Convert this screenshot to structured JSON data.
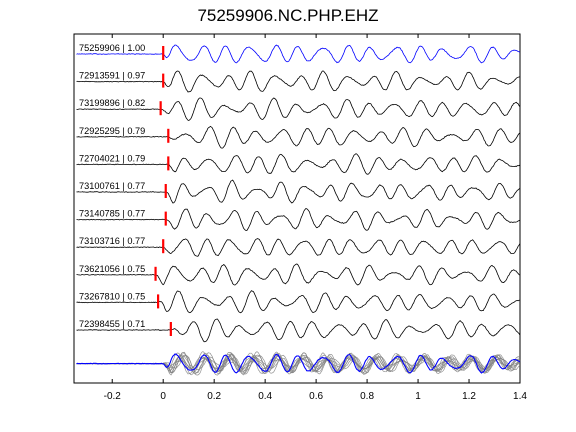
{
  "figure": {
    "title": "75259906.NC.PHP.EHZ"
  },
  "chart_data": {
    "type": "line",
    "title": "75259906.NC.PHP.EHZ",
    "xlim": [
      -0.35,
      1.4
    ],
    "x_ticks": [
      -0.2,
      0,
      0.2,
      0.4,
      0.6,
      0.8,
      1,
      1.2,
      1.4
    ],
    "x_tick_labels": [
      "-0.2",
      "0",
      "0.2",
      "0.4",
      "0.6",
      "0.8",
      "1",
      "1.2",
      "1.4"
    ],
    "xlabel": "",
    "ylabel": "",
    "grid": false,
    "pick_marker_color": "#ff0000",
    "template_color": "#0000ff",
    "trace_color": "#000000",
    "stack_color": "#808080",
    "traces": [
      {
        "label": "75259906 | 1.00",
        "event_id": "75259906",
        "correlation": 1.0,
        "pick_time": 0.0,
        "color": "#0000ff"
      },
      {
        "label": "72913591 | 0.97",
        "event_id": "72913591",
        "correlation": 0.97,
        "pick_time": 0.0,
        "color": "#000000"
      },
      {
        "label": "73199896 | 0.82",
        "event_id": "73199896",
        "correlation": 0.82,
        "pick_time": -0.01,
        "color": "#000000"
      },
      {
        "label": "72925295 | 0.79",
        "event_id": "72925295",
        "correlation": 0.79,
        "pick_time": 0.02,
        "color": "#000000"
      },
      {
        "label": "72704021 | 0.79",
        "event_id": "72704021",
        "correlation": 0.79,
        "pick_time": 0.02,
        "color": "#000000"
      },
      {
        "label": "73100761 | 0.77",
        "event_id": "73100761",
        "correlation": 0.77,
        "pick_time": 0.01,
        "color": "#000000"
      },
      {
        "label": "73140785 | 0.77",
        "event_id": "73140785",
        "correlation": 0.77,
        "pick_time": 0.01,
        "color": "#000000"
      },
      {
        "label": "73103716 | 0.77",
        "event_id": "73103716",
        "correlation": 0.77,
        "pick_time": 0.0,
        "color": "#000000"
      },
      {
        "label": "73621056 | 0.75",
        "event_id": "73621056",
        "correlation": 0.75,
        "pick_time": -0.03,
        "color": "#000000"
      },
      {
        "label": "73267810 | 0.75",
        "event_id": "73267810",
        "correlation": 0.75,
        "pick_time": -0.02,
        "color": "#000000"
      },
      {
        "label": "72398455 | 0.71",
        "event_id": "72398455",
        "correlation": 0.71,
        "pick_time": 0.03,
        "color": "#000000"
      }
    ],
    "stack_row": {
      "description_visible": false,
      "overlay_count": 10
    }
  }
}
